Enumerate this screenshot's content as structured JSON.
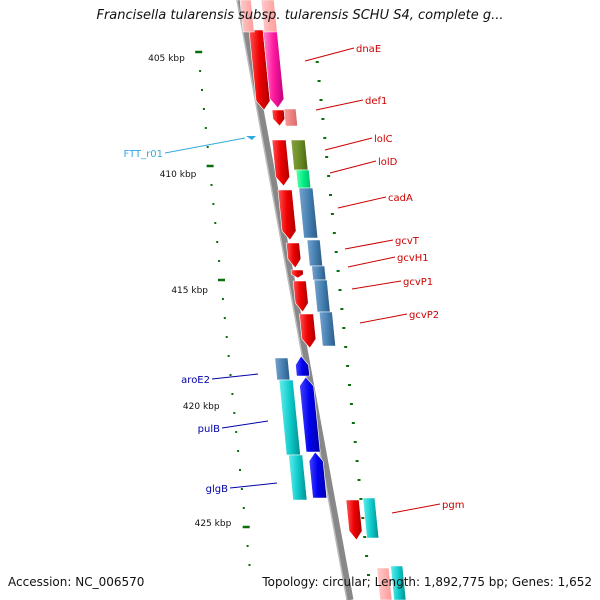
{
  "title": "Francisella tularensis subsp. tularensis SCHU S4, complete g...",
  "footer": {
    "accession": "Accession: NC_006570",
    "summary": "Topology: circular; Length: 1,892,775 bp; Genes: 1,652"
  },
  "colors": {
    "backbone": "#888888",
    "tick": "#0a6e0a",
    "forward_label": "#cc0000",
    "reverse_label": "#0000aa",
    "rna_label": "#33aadd"
  },
  "scale_labels": [
    "405 kbp",
    "410 kbp",
    "415 kbp",
    "420 kbp",
    "425 kbp"
  ],
  "features": {
    "forward": [
      "dnaE",
      "def1",
      "lolC",
      "lolD",
      "cadA",
      "gcvT",
      "gcvH1",
      "gcvP1",
      "gcvP2",
      "pgm"
    ],
    "reverse": [
      "aroE2",
      "pulB",
      "glgB"
    ],
    "rna": [
      "FTT_r01"
    ]
  }
}
